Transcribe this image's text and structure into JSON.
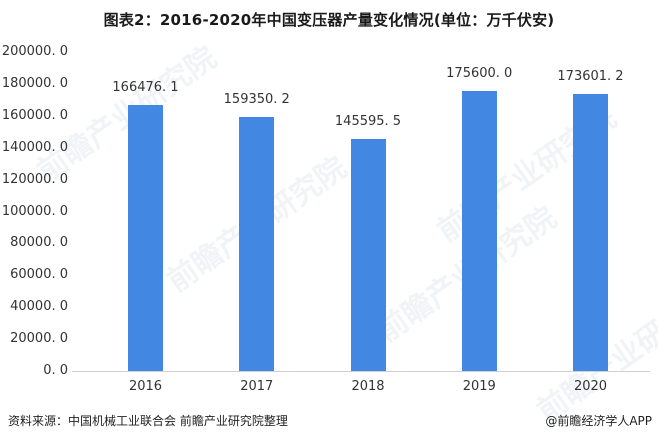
{
  "title": "图表2：2016-2020年中国变压器产量变化情况(单位：万千伏安)",
  "source": "资料来源：中国机械工业联合会 前瞻产业研究院整理",
  "brand": "@前瞻经济学人APP",
  "watermark": "前瞻产业研究院",
  "colors": {
    "bar": "#4287e2",
    "axis": "#d0d0d0",
    "text": "#333333"
  },
  "y_ticks": [
    "200000. 0",
    "180000. 0",
    "160000. 0",
    "140000. 0",
    "120000. 0",
    "100000. 0",
    "80000. 0",
    "60000. 0",
    "40000. 0",
    "20000. 0",
    "0. 0"
  ],
  "labels": [
    "166476. 1",
    "159350. 2",
    "145595. 5",
    "175600. 0",
    "173601. 2"
  ],
  "chart_data": {
    "type": "bar",
    "title": "图表2：2016-2020年中国变压器产量变化情况(单位：万千伏安)",
    "categories": [
      "2016",
      "2017",
      "2018",
      "2019",
      "2020"
    ],
    "values": [
      166476.1,
      159350.2,
      145595.5,
      175600.0,
      173601.2
    ],
    "xlabel": "",
    "ylabel": "万千伏安",
    "ylim": [
      0,
      200000
    ],
    "y_tick_step": 20000,
    "grid": false,
    "legend": null,
    "data_labels": true
  }
}
